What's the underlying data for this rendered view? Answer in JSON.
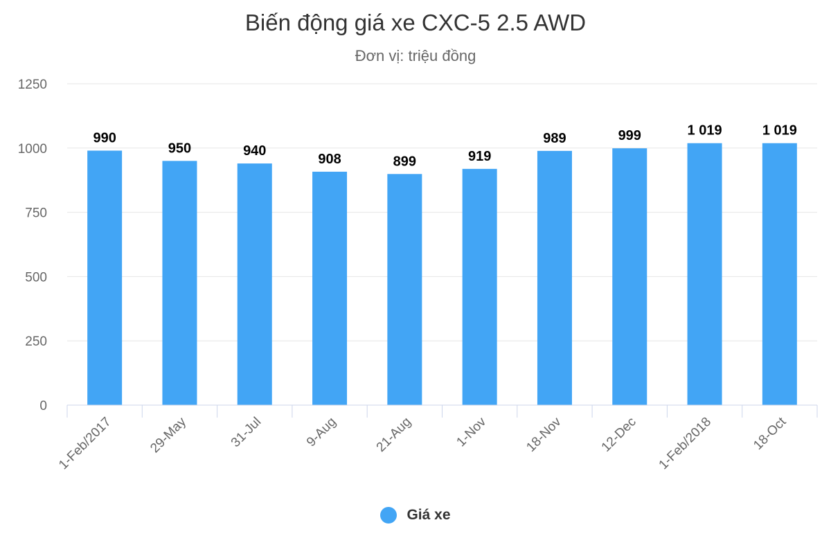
{
  "chart_data": {
    "type": "bar",
    "title": "Biến động giá xe CXC-5 2.5 AWD",
    "subtitle": "Đơn vị: triệu đồng",
    "categories": [
      "1-Feb/2017",
      "29-May",
      "31-Jul",
      "9-Aug",
      "21-Aug",
      "1-Nov",
      "18-Nov",
      "12-Dec",
      "1-Feb/2018",
      "18-Oct"
    ],
    "series": [
      {
        "name": "Giá xe",
        "values": [
          990,
          950,
          940,
          908,
          899,
          919,
          989,
          999,
          1019,
          1019
        ],
        "value_labels": [
          "990",
          "950",
          "940",
          "908",
          "899",
          "919",
          "989",
          "999",
          "1 019",
          "1 019"
        ]
      }
    ],
    "y_ticks": [
      0,
      250,
      500,
      750,
      1000,
      1250
    ],
    "ylim": [
      0,
      1250
    ],
    "grid": true,
    "legend": "bottom",
    "colors": {
      "bar": "#42a5f5",
      "grid": "#e6e6e6",
      "axis": "#ccd6eb"
    }
  }
}
